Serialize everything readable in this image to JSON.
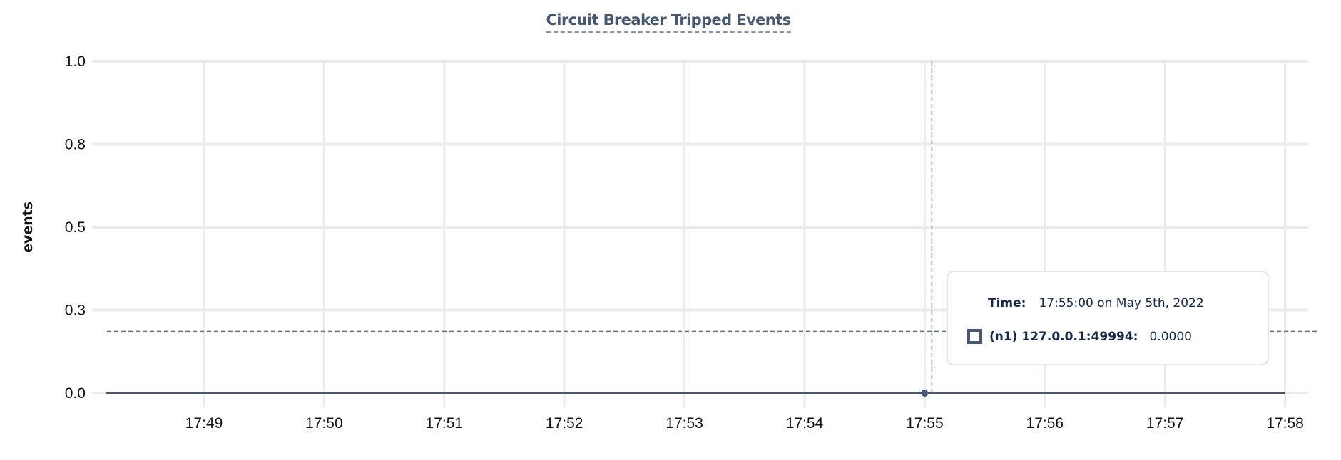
{
  "chart_data": {
    "type": "line",
    "title": "Circuit Breaker Tripped Events",
    "ylabel": "events",
    "xlabel": "",
    "x_ticks": [
      "17:49",
      "17:50",
      "17:51",
      "17:52",
      "17:53",
      "17:54",
      "17:55",
      "17:56",
      "17:57",
      "17:58"
    ],
    "y_ticks": [
      {
        "value": 0,
        "label": "0.0"
      },
      {
        "value": 0.25,
        "label": "0.3"
      },
      {
        "value": 0.5,
        "label": "0.5"
      },
      {
        "value": 0.75,
        "label": "0.8"
      },
      {
        "value": 1.0,
        "label": "1.0"
      }
    ],
    "ylim": [
      0,
      1
    ],
    "xlim": [
      "17:48:11",
      "17:58:00"
    ],
    "grid": true,
    "series": [
      {
        "name": "(n1) 127.0.0.1:49994",
        "color": "#475872",
        "x": [
          "17:48:11",
          "17:58:00"
        ],
        "values": [
          0,
          0
        ]
      }
    ],
    "hover": {
      "x": "17:55:00",
      "value": 0,
      "crosshair_y": 0.186
    }
  },
  "tooltip": {
    "time_label": "Time:",
    "time_value": "17:55:00 on May 5th, 2022",
    "series_label": "(n1) 127.0.0.1:49994:",
    "series_value": "0.0000"
  },
  "colors": {
    "series": "#475872",
    "grid": "#ebebeb",
    "crosshair": "#5f7384",
    "title": "#475872"
  }
}
